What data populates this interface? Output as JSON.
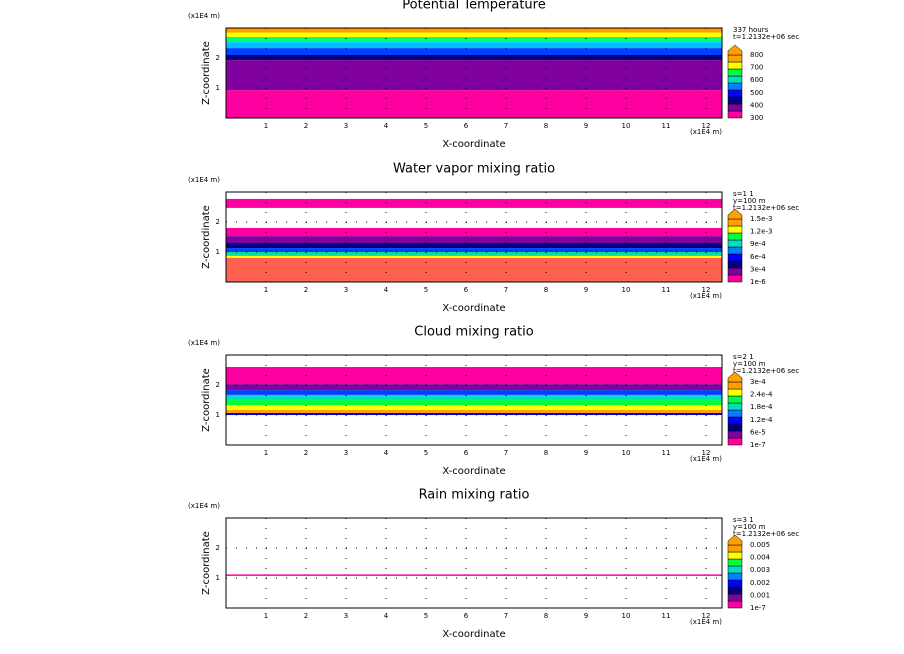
{
  "chart_data": [
    {
      "type": "contour",
      "title": "Potential Temperature",
      "xlabel": "X-coordinate",
      "ylabel": "Z-coordinate",
      "unit_top": "(x1E4 m)",
      "unit_bottom": "(x1E4 m)",
      "info": [
        "337 hours",
        "t=1.2132e+06 sec"
      ],
      "xlim": [
        0,
        12.4
      ],
      "ylim": [
        0,
        3
      ],
      "xticks": [
        1,
        2,
        3,
        4,
        5,
        6,
        7,
        8,
        9,
        10,
        11,
        12
      ],
      "yticks": [
        1,
        2
      ],
      "colorbar": {
        "labels": [
          "800",
          "700",
          "600",
          "500",
          "400",
          "300"
        ],
        "colors": [
          "#ff00a0",
          "#8000a0",
          "#000080",
          "#0000ff",
          "#0080ff",
          "#00e0c0",
          "#00ff40",
          "#ffff00",
          "#ffa000"
        ]
      },
      "bands": [
        {
          "range": [
            0,
            0.93
          ],
          "color": "#ff00a0"
        },
        {
          "range": [
            0.93,
            1.93
          ],
          "color": "#8000a0"
        },
        {
          "range": [
            1.93,
            2.1
          ],
          "color": "#000080"
        },
        {
          "range": [
            2.1,
            2.33
          ],
          "color": "#0040ff"
        },
        {
          "range": [
            2.33,
            2.53
          ],
          "color": "#00c0ff"
        },
        {
          "range": [
            2.53,
            2.7
          ],
          "color": "#00ff80"
        },
        {
          "range": [
            2.7,
            2.85
          ],
          "color": "#ffff00"
        },
        {
          "range": [
            2.85,
            3
          ],
          "color": "#ffa000"
        }
      ]
    },
    {
      "type": "contour",
      "title": "Water vapor mixing ratio",
      "xlabel": "X-coordinate",
      "ylabel": "Z-coordinate",
      "unit_top": "(x1E4 m)",
      "unit_bottom": "(x1E4 m)",
      "info": [
        "s=1 1",
        "y=100 m",
        "t=1.2132e+06 sec"
      ],
      "xlim": [
        0,
        12.4
      ],
      "ylim": [
        0,
        3
      ],
      "xticks": [
        1,
        2,
        3,
        4,
        5,
        6,
        7,
        8,
        9,
        10,
        11,
        12
      ],
      "yticks": [
        1,
        2
      ],
      "colorbar": {
        "labels": [
          "1.5e-3",
          "1.2e-3",
          "9e-4",
          "6e-4",
          "3e-4",
          "1e-6"
        ],
        "colors": [
          "#ff00a0",
          "#8000a0",
          "#000080",
          "#0000ff",
          "#0080ff",
          "#00e0c0",
          "#00ff40",
          "#ffff00",
          "#ffa000"
        ]
      },
      "bands": [
        {
          "range": [
            0,
            0.8
          ],
          "color": "#ff6050"
        },
        {
          "range": [
            0.8,
            0.87
          ],
          "color": "#ffff00"
        },
        {
          "range": [
            0.87,
            1.0
          ],
          "color": "#00e0a0"
        },
        {
          "range": [
            1.0,
            1.13
          ],
          "color": "#0040ff"
        },
        {
          "range": [
            1.13,
            1.3
          ],
          "color": "#000080"
        },
        {
          "range": [
            1.3,
            1.53
          ],
          "color": "#8000a0"
        },
        {
          "range": [
            1.53,
            1.8
          ],
          "color": "#ff00a0"
        },
        {
          "range": [
            2.47,
            2.77
          ],
          "color": "#ff00a0"
        }
      ]
    },
    {
      "type": "contour",
      "title": "Cloud mixing ratio",
      "xlabel": "X-coordinate",
      "ylabel": "Z-coordinate",
      "unit_top": "(x1E4 m)",
      "unit_bottom": "(x1E4 m)",
      "info": [
        "s=2 1",
        "y=100 m",
        "t=1.2132e+06 sec"
      ],
      "xlim": [
        0,
        12.4
      ],
      "ylim": [
        0,
        3
      ],
      "xticks": [
        1,
        2,
        3,
        4,
        5,
        6,
        7,
        8,
        9,
        10,
        11,
        12
      ],
      "yticks": [
        1,
        2
      ],
      "colorbar": {
        "labels": [
          "3e-4",
          "2.4e-4",
          "1.8e-4",
          "1.2e-4",
          "6e-5",
          "1e-7"
        ],
        "colors": [
          "#ff00a0",
          "#8000a0",
          "#000080",
          "#0000ff",
          "#0080ff",
          "#00e0c0",
          "#00ff40",
          "#ffff00",
          "#ffa000"
        ]
      },
      "bands": [
        {
          "range": [
            1.0,
            1.07
          ],
          "color": "#0000ff"
        },
        {
          "range": [
            1.07,
            1.17
          ],
          "color": "#ffa000"
        },
        {
          "range": [
            1.17,
            1.33
          ],
          "color": "#ffff00"
        },
        {
          "range": [
            1.33,
            1.5
          ],
          "color": "#00ff40"
        },
        {
          "range": [
            1.5,
            1.67
          ],
          "color": "#00e0c0"
        },
        {
          "range": [
            1.67,
            1.83
          ],
          "color": "#0040ff"
        },
        {
          "range": [
            1.83,
            2.03
          ],
          "color": "#8000a0"
        },
        {
          "range": [
            2.03,
            2.6
          ],
          "color": "#ff00a0"
        }
      ]
    },
    {
      "type": "contour",
      "title": "Rain mixing ratio",
      "xlabel": "X-coordinate",
      "ylabel": "Z-coordinate",
      "unit_top": "(x1E4 m)",
      "unit_bottom": "(x1E4 m)",
      "info": [
        "s=3 1",
        "y=100 m",
        "t=1.2132e+06 sec"
      ],
      "xlim": [
        0,
        12.4
      ],
      "ylim": [
        0,
        3
      ],
      "xticks": [
        1,
        2,
        3,
        4,
        5,
        6,
        7,
        8,
        9,
        10,
        11,
        12
      ],
      "yticks": [
        1,
        2
      ],
      "colorbar": {
        "labels": [
          "0.005",
          "0.004",
          "0.003",
          "0.002",
          "0.001",
          "1e-7"
        ],
        "colors": [
          "#ff00a0",
          "#8000a0",
          "#000080",
          "#0000ff",
          "#0080ff",
          "#00e0c0",
          "#00ff40",
          "#ffff00",
          "#ffa000"
        ]
      },
      "bands": [
        {
          "range": [
            1.07,
            1.12
          ],
          "color": "#ff00a0"
        }
      ]
    }
  ]
}
